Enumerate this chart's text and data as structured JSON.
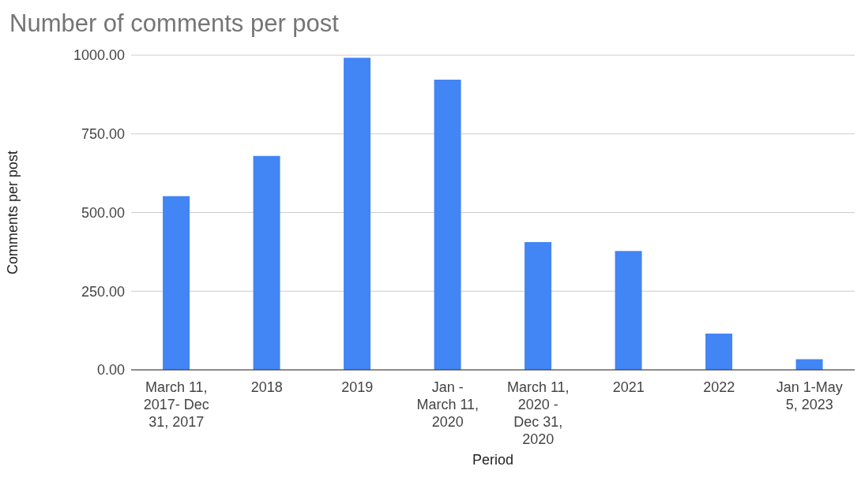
{
  "chart_data": {
    "type": "bar",
    "title": "Number of comments per post",
    "xlabel": "Period",
    "ylabel": "Comments per post",
    "categories": [
      "March 11, 2017- Dec 31, 2017",
      "2018",
      "2019",
      "Jan - March 11, 2020",
      "March 11, 2020 - Dec 31, 2020",
      "2021",
      "2022",
      "Jan 1-May 5, 2023"
    ],
    "values": [
      552,
      680,
      992,
      922,
      406,
      378,
      115,
      34
    ],
    "color": "#4285f4",
    "ylim": [
      0,
      1000
    ],
    "yticks": [
      {
        "value": 0,
        "label": "0.00"
      },
      {
        "value": 250,
        "label": "250.00"
      },
      {
        "value": 500,
        "label": "500.00"
      },
      {
        "value": 750,
        "label": "750.00"
      },
      {
        "value": 1000,
        "label": "1000.00"
      }
    ],
    "grid": "y",
    "legend": false
  }
}
